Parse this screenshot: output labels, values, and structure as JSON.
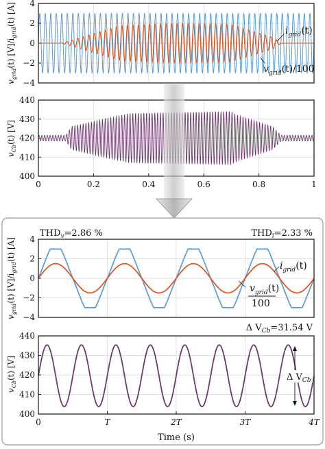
{
  "colors": {
    "grid_current": "#d9541e",
    "grid_voltage": "#5b9bd5",
    "capacitor_voltage": "#6b3a6b",
    "arrow_fill": "#c7c7c7",
    "inset_border": "#9a9a9a"
  },
  "chart_data": [
    {
      "id": "top-grid",
      "type": "line",
      "xlim": [
        0,
        1
      ],
      "ylim": [
        -4,
        4
      ],
      "yticks": [
        -4,
        -2,
        0,
        2,
        4
      ],
      "ylabel": "v_grid(t) [V]/i_grid(t) [A]",
      "grid": true,
      "series": [
        {
          "name": "i_grid(t)",
          "description_of_values": "current envelope",
          "envelope_t": [
            0,
            0.08,
            0.12,
            0.3,
            0.5,
            0.7,
            0.85,
            0.88,
            1
          ],
          "envelope_amp": [
            0,
            0,
            0.3,
            1.8,
            2.0,
            1.9,
            0.6,
            0,
            0
          ],
          "freq_cycles": 50
        },
        {
          "name": "v_grid(t)/100",
          "amplitude": 3.0,
          "freq_cycles": 50
        }
      ]
    },
    {
      "id": "top-cap",
      "type": "line",
      "xlim": [
        0,
        1
      ],
      "ylim": [
        400,
        440
      ],
      "yticks": [
        400,
        410,
        420,
        430,
        440
      ],
      "xticks": [
        0,
        0.2,
        0.4,
        0.6,
        0.8,
        1
      ],
      "ylabel": "v_Cb(t) [V]",
      "grid": true,
      "series": [
        {
          "name": "v_Cb(t)",
          "mean": 420,
          "envelope_t": [
            0,
            0.1,
            0.12,
            0.3,
            0.33,
            0.7,
            0.72,
            0.85,
            0.88,
            1
          ],
          "envelope_amp": [
            1.5,
            1.5,
            6,
            12,
            13,
            14,
            12,
            6,
            1.5,
            1.5
          ],
          "freq_cycles": 100
        }
      ]
    },
    {
      "id": "bottom-grid",
      "type": "line",
      "xlim": [
        0,
        4
      ],
      "ylim": [
        -4,
        4
      ],
      "yticks": [
        -4,
        -2,
        0,
        2,
        4
      ],
      "ylabel": "v_grid(t) [V]/i_grid(t) [A]",
      "grid": true,
      "series": [
        {
          "name": "i_grid(t)",
          "amplitude": 1.5
        },
        {
          "name": "v_grid(t)/100",
          "amplitude": 3.0
        }
      ]
    },
    {
      "id": "bottom-cap",
      "type": "line",
      "xlim": [
        0,
        4
      ],
      "ylim": [
        400,
        440
      ],
      "yticks": [
        400,
        410,
        420,
        430,
        440
      ],
      "xticks": [
        0,
        1,
        2,
        3,
        4
      ],
      "xticklabels": [
        "0",
        "T",
        "2T",
        "3T",
        "4T"
      ],
      "xlabel": "Time (s)",
      "ylabel": "v_Cb(t) [V]",
      "grid": true,
      "series": [
        {
          "name": "v_Cb(t)",
          "mean": 419.6,
          "amplitude": 15.77,
          "cycles_per_T": 2
        }
      ]
    }
  ],
  "annotations": {
    "thd_v": "THD",
    "thd_v_sub": "v",
    "thd_v_value": "=2.86 %",
    "thd_i": "THD",
    "thd_i_sub": "i",
    "thd_i_value": "=2.33 %",
    "delta_vcb_text": "Δ V",
    "delta_vcb_sub": "Cb",
    "delta_vcb_value": "=31.54 V",
    "delta_vcb_bracket": "Δ V",
    "delta_vcb_bracket_sub": "Cb"
  },
  "labels": {
    "i_grid": "i",
    "i_grid_sub": "grid",
    "i_grid_arg": "(t)",
    "v_grid": "v",
    "v_grid_sub": "grid",
    "v_grid_arg": "(t)/100",
    "v_grid_frac_num": "(t)",
    "v_grid_frac_den": "100",
    "ylabel_grid_v": "v",
    "ylabel_grid_v_sub": "grid",
    "ylabel_grid_rest": "(t) [V]/i",
    "ylabel_grid_i_sub": "grid",
    "ylabel_grid_end": "(t) [A]",
    "ylabel_cap": "v",
    "ylabel_cap_sub": "Cb",
    "ylabel_cap_end": "(t) [V]",
    "xlabel_bottom": "Time (s)"
  },
  "tick_labels": {
    "grid_y": [
      "4",
      "2",
      "0",
      "−2",
      "−4"
    ],
    "cap_y": [
      "440",
      "430",
      "420",
      "410",
      "400"
    ],
    "top_x": [
      "0",
      "0.2",
      "0.4",
      "0.6",
      "0.8",
      "1"
    ],
    "bottom_x": [
      "0",
      "T",
      "2T",
      "3T",
      "4T"
    ]
  }
}
